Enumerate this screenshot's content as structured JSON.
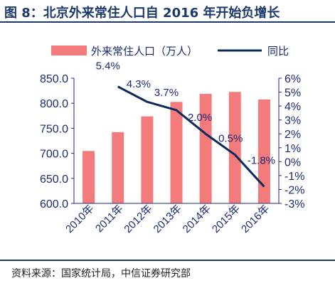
{
  "title": "图 8：北京外来常住人口自 2016 年开始负增长",
  "source": "资料来源：国家统计局，中信证券研究部",
  "chart_data": {
    "type": "bar+line",
    "categories": [
      "2010年",
      "2011年",
      "2012年",
      "2013年",
      "2014年",
      "2015年",
      "2016年"
    ],
    "series": [
      {
        "name": "外来常住人口（万人）",
        "type": "bar",
        "axis": "left",
        "color": "#f47b7b",
        "values": [
          704.7,
          742.2,
          773.8,
          802.7,
          818.7,
          822.6,
          807.5
        ]
      },
      {
        "name": "同比",
        "type": "line",
        "axis": "right",
        "color": "#0d2a5e",
        "values": [
          null,
          5.4,
          4.3,
          3.7,
          2.0,
          0.5,
          -1.8
        ],
        "labels": [
          "",
          "5.4%",
          "4.3%",
          "3.7%",
          "2.0%",
          "0.5%",
          "-1.8%"
        ]
      }
    ],
    "y_left": {
      "min": 600,
      "max": 850,
      "ticks": [
        "600.0",
        "650.0",
        "700.0",
        "750.0",
        "800.0",
        "850.0"
      ]
    },
    "y_right": {
      "min": -3,
      "max": 6,
      "ticks": [
        "-3%",
        "-2%",
        "-1%",
        "0%",
        "1%",
        "2%",
        "3%",
        "4%",
        "5%",
        "6%"
      ]
    },
    "grid": false,
    "legend_position": "top"
  }
}
